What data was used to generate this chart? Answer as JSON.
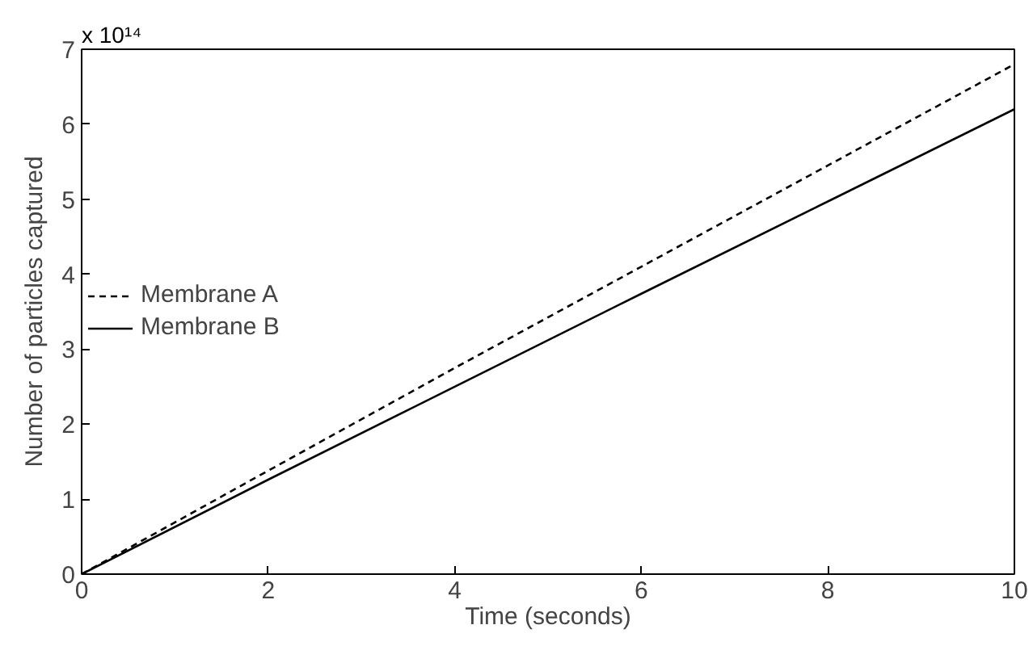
{
  "chart_data": {
    "type": "line",
    "xlabel": "Time (seconds)",
    "ylabel": "Number of particles captured",
    "annotations": [
      "x 10¹⁴"
    ],
    "x": [
      0,
      2,
      4,
      6,
      8,
      10
    ],
    "series": [
      {
        "name": "Membrane A",
        "color": "#000000",
        "line_style": "dashed",
        "values": [
          0,
          1.38,
          2.75,
          4.1,
          5.45,
          6.8
        ]
      },
      {
        "name": "Membrane B",
        "color": "#000000",
        "line_style": "solid",
        "values": [
          0,
          1.26,
          2.5,
          3.74,
          4.97,
          6.2
        ]
      }
    ],
    "xlim": [
      0,
      10
    ],
    "xticks": [
      0,
      2,
      4,
      6,
      8,
      10
    ],
    "ylim": [
      0,
      7
    ],
    "yticks": [
      0,
      1,
      2,
      3,
      4,
      5,
      6,
      7
    ],
    "grid": false,
    "legend": "left",
    "marker": "none"
  }
}
